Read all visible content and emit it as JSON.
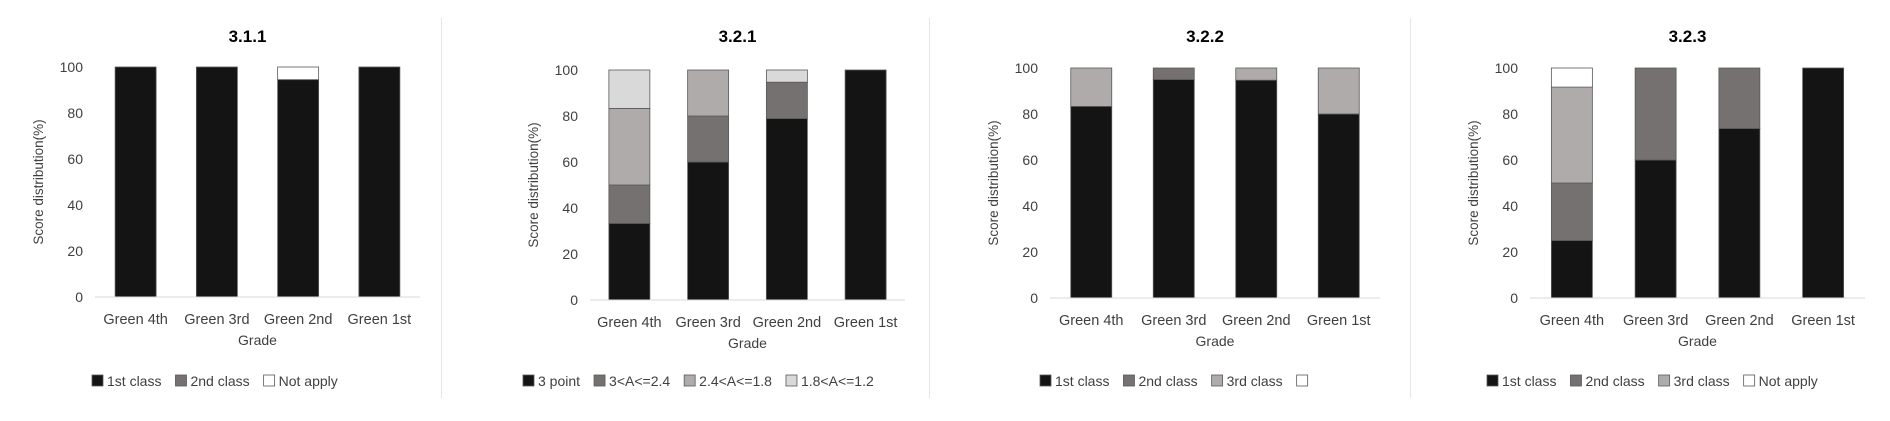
{
  "chart_data": [
    {
      "type": "bar",
      "stacked": true,
      "title": "3.1.1",
      "xlabel": "Grade",
      "ylabel": "Score distribution(%)",
      "ylim": [
        0,
        100
      ],
      "yticks": [
        0,
        20,
        40,
        60,
        80,
        100
      ],
      "grid": false,
      "legend": "bottom",
      "categories": [
        "Green 4th",
        "Green 3rd",
        "Green 2nd",
        "Green 1st"
      ],
      "series": [
        {
          "name": "1st class",
          "color": "#141414",
          "values": [
            100,
            100,
            94.5,
            100
          ]
        },
        {
          "name": "2nd class",
          "color": "#767171",
          "values": [
            0,
            0,
            0,
            0
          ]
        },
        {
          "name": "Not apply",
          "color": "#ffffff",
          "values": [
            0,
            0,
            5.5,
            0
          ]
        }
      ]
    },
    {
      "type": "bar",
      "stacked": true,
      "title": "3.2.1",
      "xlabel": "Grade",
      "ylabel": "Score distribution(%)",
      "ylim": [
        0,
        100
      ],
      "yticks": [
        0,
        20,
        40,
        60,
        80,
        100
      ],
      "grid": false,
      "legend": "bottom",
      "categories": [
        "Green 4th",
        "Green 3rd",
        "Green 2nd",
        "Green 1st"
      ],
      "series": [
        {
          "name": "3 point",
          "color": "#141414",
          "values": [
            33.3,
            60,
            78.9,
            100
          ]
        },
        {
          "name": "3<A<=2.4",
          "color": "#767171",
          "values": [
            16.7,
            20,
            15.8,
            0
          ]
        },
        {
          "name": "2.4<A<=1.8",
          "color": "#afabab",
          "values": [
            33.3,
            20,
            0,
            0
          ]
        },
        {
          "name": "1.8<A<=1.2",
          "color": "#d9d9d9",
          "values": [
            16.7,
            0,
            5.3,
            0
          ]
        }
      ]
    },
    {
      "type": "bar",
      "stacked": true,
      "title": "3.2.2",
      "xlabel": "Grade",
      "ylabel": "Score distribution(%)",
      "ylim": [
        0,
        100
      ],
      "yticks": [
        0,
        20,
        40,
        60,
        80,
        100
      ],
      "grid": false,
      "legend": "bottom",
      "categories": [
        "Green 4th",
        "Green 3rd",
        "Green 2nd",
        "Green 1st"
      ],
      "series": [
        {
          "name": "1st class",
          "color": "#141414",
          "values": [
            83.3,
            95,
            94.7,
            80
          ]
        },
        {
          "name": "2nd class",
          "color": "#767171",
          "values": [
            0,
            5,
            0,
            0
          ]
        },
        {
          "name": "3rd class",
          "color": "#afabab",
          "values": [
            16.7,
            0,
            5.3,
            20
          ]
        },
        {
          "name": "",
          "color": "#ffffff",
          "values": [
            0,
            0,
            0,
            0
          ]
        }
      ]
    },
    {
      "type": "bar",
      "stacked": true,
      "title": "3.2.3",
      "xlabel": "Grade",
      "ylabel": "Score distribution(%)",
      "ylim": [
        0,
        100
      ],
      "yticks": [
        0,
        20,
        40,
        60,
        80,
        100
      ],
      "grid": false,
      "legend": "bottom",
      "categories": [
        "Green 4th",
        "Green 3rd",
        "Green 2nd",
        "Green 1st"
      ],
      "series": [
        {
          "name": "1st class",
          "color": "#141414",
          "values": [
            25,
            60,
            73.7,
            100
          ]
        },
        {
          "name": "2nd class",
          "color": "#767171",
          "values": [
            25,
            40,
            26.3,
            0
          ]
        },
        {
          "name": "3rd class",
          "color": "#afabab",
          "values": [
            41.7,
            0,
            0,
            0
          ]
        },
        {
          "name": "Not apply",
          "color": "#ffffff",
          "values": [
            8.3,
            0,
            0,
            0
          ]
        }
      ]
    }
  ]
}
